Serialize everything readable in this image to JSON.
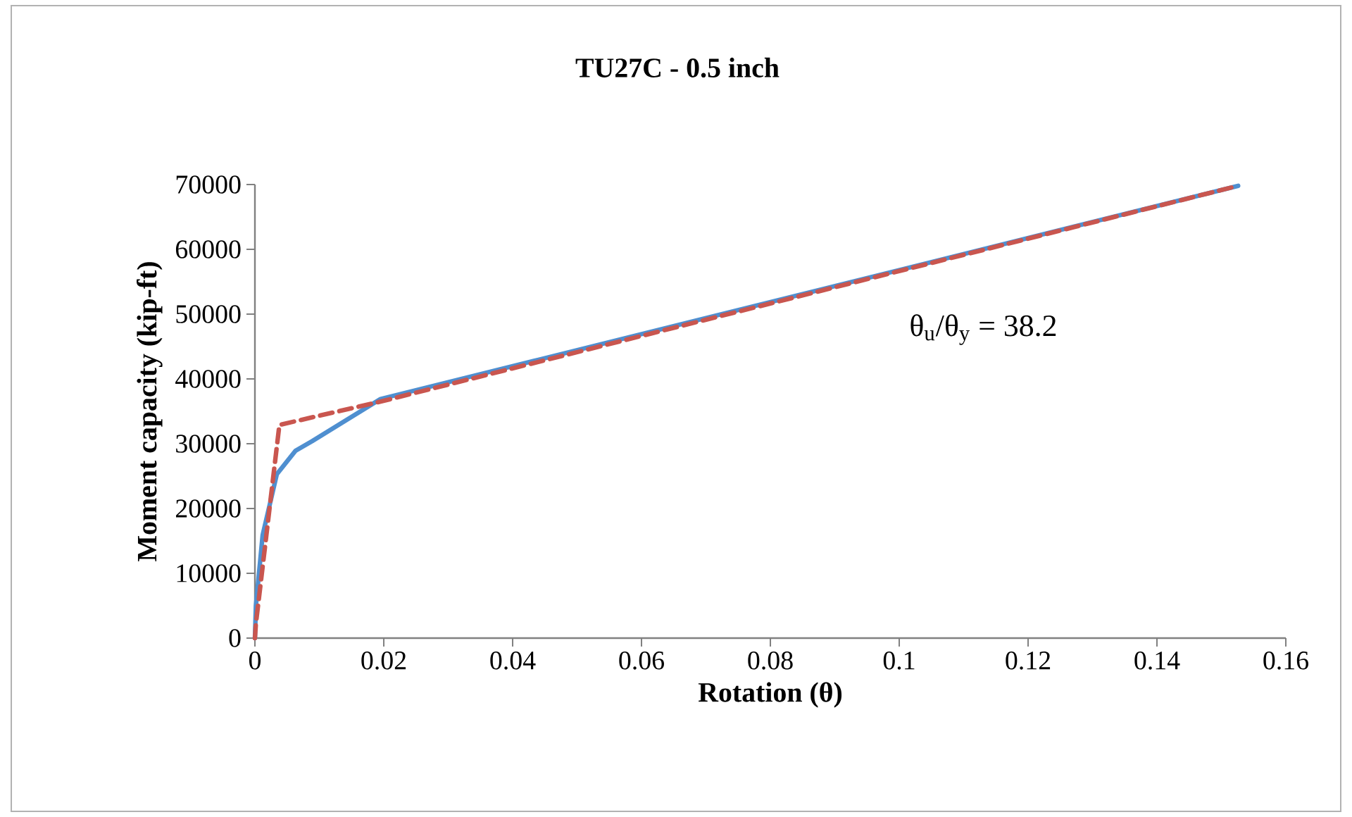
{
  "chart_data": {
    "type": "line",
    "title": "TU27C - 0.5 inch",
    "xlabel": "Rotation (θ)",
    "ylabel": "Moment capacity (kip-ft)",
    "annotations": [
      "θ$_{u}$/θ$_{y}$ = 38.2"
    ],
    "xlim": [
      0,
      0.16
    ],
    "xticks": [
      0,
      0.02,
      0.04,
      0.06,
      0.08,
      0.1,
      0.12,
      0.14,
      0.16
    ],
    "ylim": [
      0,
      70000
    ],
    "yticks": [
      0,
      10000,
      20000,
      30000,
      40000,
      50000,
      60000,
      70000
    ],
    "grid": false,
    "series": [
      {
        "color": "#4f8fd0",
        "line_style": "solid",
        "x": [
          0,
          0.00015,
          0.0012,
          0.0034,
          0.0063,
          0.0089,
          0.0195,
          0.1526
        ],
        "values": [
          0,
          5000,
          15900,
          25300,
          28900,
          30400,
          36900,
          69800
        ]
      },
      {
        "color": "#c9564f",
        "line_style": "dashed",
        "x": [
          0,
          0.00015,
          0.0038,
          0.0195,
          0.1526
        ],
        "values": [
          0,
          2200,
          32900,
          36500,
          69800
        ]
      }
    ]
  }
}
